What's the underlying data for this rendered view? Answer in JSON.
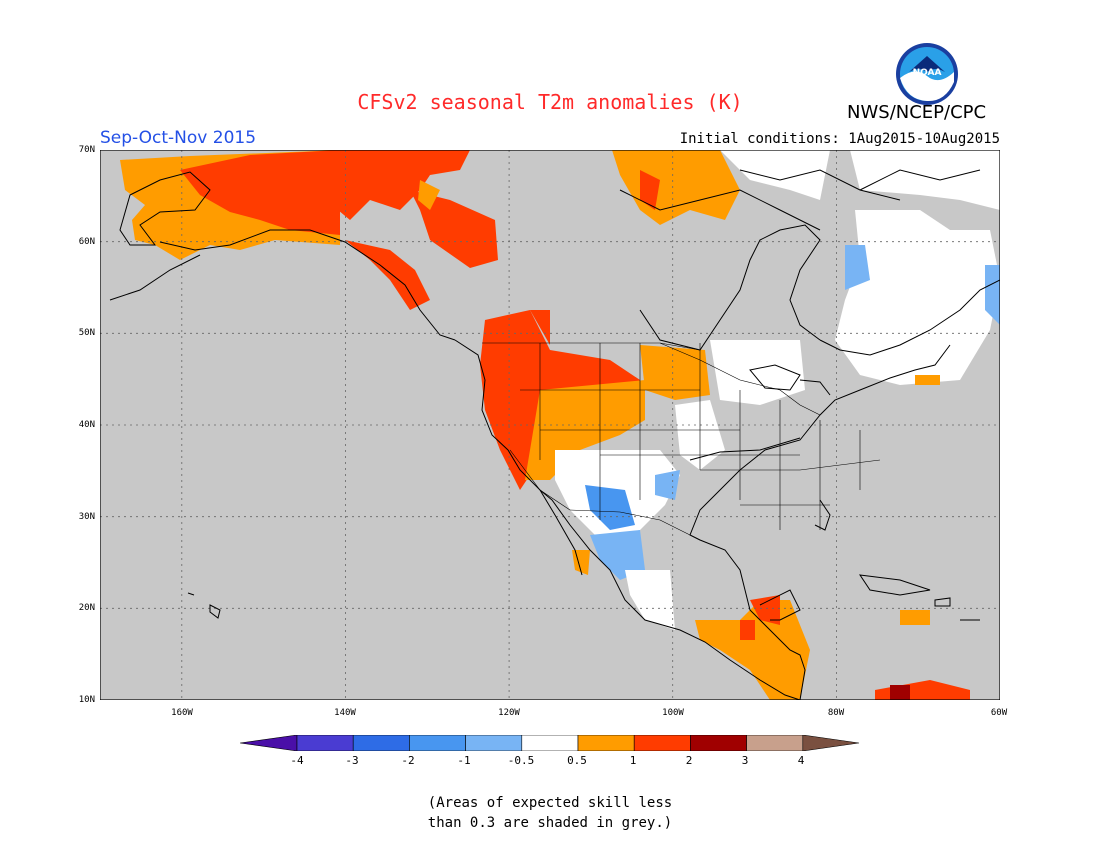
{
  "header": {
    "title": "CFSv2 seasonal T2m anomalies (K)",
    "agency": "NWS/NCEP/CPC",
    "logo_text": "NOAA",
    "season": "Sep-Oct-Nov 2015",
    "initial_conditions": "Initial conditions: 1Aug2015-10Aug2015"
  },
  "map": {
    "lat_labels": [
      "70N",
      "60N",
      "50N",
      "40N",
      "30N",
      "20N",
      "10N"
    ],
    "lon_labels": [
      "160W",
      "140W",
      "120W",
      "100W",
      "80W",
      "60W"
    ],
    "lat_range": [
      10,
      70
    ],
    "lon_range": [
      -170,
      -60
    ],
    "background_color": "#c8c8c8"
  },
  "colorbar": {
    "ticks": [
      "-4",
      "-3",
      "-2",
      "-1",
      "-0.5",
      "0.5",
      "1",
      "2",
      "3",
      "4"
    ],
    "colors": [
      "#4a0fa8",
      "#4a3cd2",
      "#2e6ce6",
      "#4896f0",
      "#78b4f4",
      "#ffffff",
      "#ff9c00",
      "#ff3c00",
      "#a00000",
      "#c8a08c",
      "#7a5040"
    ]
  },
  "note": {
    "line1": "(Areas of expected skill less",
    "line2": "than 0.3 are shaded in grey.)"
  }
}
